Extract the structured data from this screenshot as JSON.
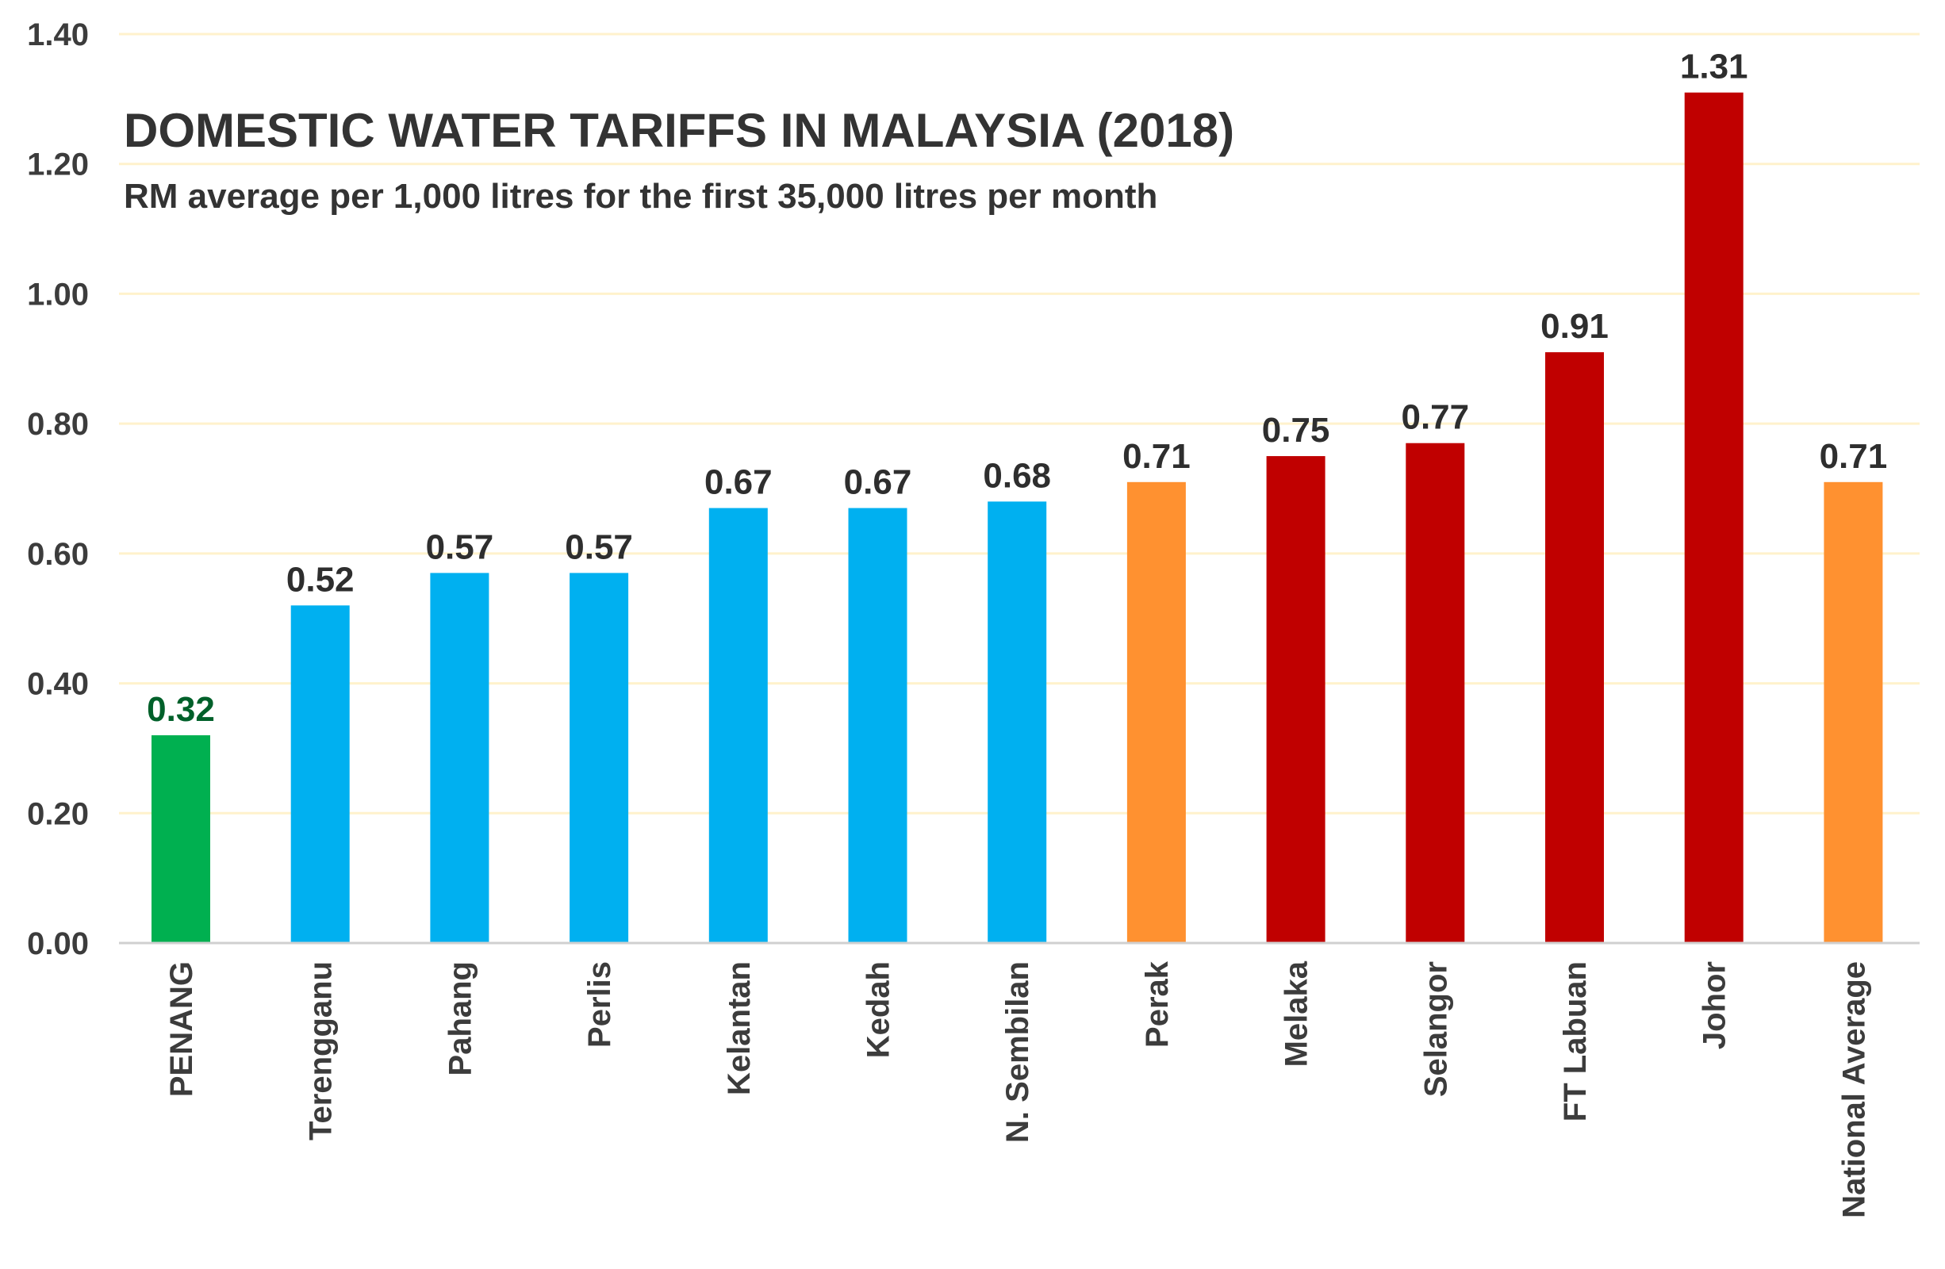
{
  "chart_data": {
    "type": "bar",
    "title": "DOMESTIC WATER TARIFFS IN MALAYSIA (2018)",
    "subtitle": "RM average per 1,000 litres for the first 35,000 litres per month",
    "xlabel": "",
    "ylabel": "",
    "ylim": [
      0,
      1.4
    ],
    "yticks": [
      "0.00",
      "0.20",
      "0.40",
      "0.60",
      "0.80",
      "1.00",
      "1.20",
      "1.40"
    ],
    "grid": true,
    "legend": "none",
    "categories": [
      "PENANG",
      "Terengganu",
      "Pahang",
      "Perlis",
      "Kelantan",
      "Kedah",
      "N. Sembilan",
      "Perak",
      "Melaka",
      "Selangor",
      "FT Labuan",
      "Johor",
      "National Average"
    ],
    "values": [
      0.32,
      0.52,
      0.57,
      0.57,
      0.67,
      0.67,
      0.68,
      0.71,
      0.75,
      0.77,
      0.91,
      1.31,
      0.71
    ],
    "value_labels": [
      "0.32",
      "0.52",
      "0.57",
      "0.57",
      "0.67",
      "0.67",
      "0.68",
      "0.71",
      "0.75",
      "0.77",
      "0.91",
      "1.31",
      "0.71"
    ],
    "bar_colors": [
      "#00b050",
      "#00b0f0",
      "#00b0f0",
      "#00b0f0",
      "#00b0f0",
      "#00b0f0",
      "#00b0f0",
      "#ff9130",
      "#c00000",
      "#c00000",
      "#c00000",
      "#c00000",
      "#ff9130"
    ],
    "label_colors": [
      "#00602a",
      "#2e2e2e",
      "#2e2e2e",
      "#2e2e2e",
      "#2e2e2e",
      "#2e2e2e",
      "#2e2e2e",
      "#2e2e2e",
      "#2e2e2e",
      "#2e2e2e",
      "#2e2e2e",
      "#2e2e2e",
      "#2e2e2e"
    ],
    "gridline_color": "#fff2cc",
    "axis_color": "#d0d0d0"
  }
}
